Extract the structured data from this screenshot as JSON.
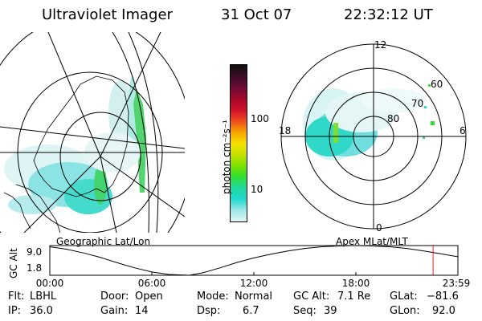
{
  "header": {
    "instrument": "Ultraviolet Imager",
    "date": "31 Oct 07",
    "time": "22:32:12 UT"
  },
  "colorbar": {
    "label": "photon cm⁻²s⁻¹",
    "ticks": [
      "100",
      "10"
    ],
    "colors": [
      "#101010",
      "#3a0d28",
      "#6b0a35",
      "#a30a2a",
      "#d0102a",
      "#f04a20",
      "#f7a400",
      "#f6e000",
      "#c8e000",
      "#7ee000",
      "#30e030",
      "#20d8a0",
      "#20d8d0",
      "#a0e8e8",
      "#dff5f5"
    ]
  },
  "polar_plot": {
    "mlt_labels": {
      "top": "12",
      "left": "18",
      "right": "6",
      "bottom": "0"
    },
    "lat_labels": [
      "60",
      "70",
      "80"
    ]
  },
  "panel_labels": {
    "left": "Geographic Lat/Lon",
    "right": "Apex MLat/MLT"
  },
  "chart_data": {
    "type": "line",
    "title": "",
    "xlabel": "",
    "ylabel": "GC Alt",
    "x_ticks": [
      "00:00",
      "06:00",
      "12:00",
      "18:00",
      "23:59"
    ],
    "y_ticks": [
      "9.0",
      "1.8"
    ],
    "ylim": [
      1.8,
      9.0
    ],
    "xlim_hours": [
      0,
      24
    ],
    "series": [
      {
        "x_hours": [
          0,
          1,
          2,
          3,
          4,
          5,
          6,
          7,
          8.2,
          9,
          10,
          11,
          12,
          13,
          14,
          15,
          16,
          17,
          18,
          19,
          20,
          21,
          22,
          23,
          23.98
        ],
        "values": [
          8.7,
          8.1,
          7.2,
          6.1,
          4.8,
          3.6,
          2.6,
          2.0,
          1.8,
          2.4,
          3.6,
          4.9,
          6.0,
          6.9,
          7.7,
          8.3,
          8.7,
          8.9,
          9.0,
          8.9,
          8.7,
          8.3,
          7.7,
          7.0,
          6.3
        ]
      }
    ],
    "current_time_hours": 22.54,
    "current_marker_color": "#e02020"
  },
  "info": {
    "flt_label": "Flt:",
    "flt_value": "LBHL",
    "ip_label": "IP:",
    "ip_value": "36.0",
    "door_label": "Door:",
    "door_value": "Open",
    "gain_label": "Gain:",
    "gain_value": "14",
    "mode_label": "Mode:",
    "mode_value": "Normal",
    "dsp_label": "Dsp:",
    "dsp_value": "6.7",
    "gcalt_label": "GC Alt:",
    "gcalt_value": "7.1 Re",
    "seq_label": "Seq:",
    "seq_value": "39",
    "glat_label": "GLat:",
    "glat_value": "−81.6",
    "glon_label": "GLon:",
    "glon_value": "92.0"
  }
}
